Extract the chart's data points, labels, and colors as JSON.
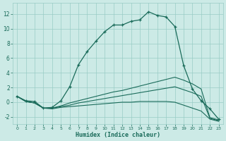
{
  "xlabel": "Humidex (Indice chaleur)",
  "background_color": "#cceae6",
  "grid_color": "#99ccc6",
  "line_color": "#1a6b5a",
  "xlim": [
    -0.5,
    23.5
  ],
  "ylim": [
    -3.0,
    13.5
  ],
  "xticks": [
    0,
    1,
    2,
    3,
    4,
    5,
    6,
    7,
    8,
    9,
    10,
    11,
    12,
    13,
    14,
    15,
    16,
    17,
    18,
    19,
    20,
    21,
    22,
    23
  ],
  "yticks": [
    -2,
    0,
    2,
    4,
    6,
    8,
    10,
    12
  ],
  "series1": {
    "x": [
      0,
      1,
      2,
      3,
      4,
      5,
      6,
      7,
      8,
      9,
      10,
      11,
      12,
      13,
      14,
      15,
      16,
      17,
      18,
      19,
      20,
      21,
      22,
      23
    ],
    "y": [
      0.8,
      0.2,
      0.1,
      -0.8,
      -0.7,
      0.2,
      2.1,
      5.1,
      6.9,
      8.3,
      9.6,
      10.5,
      10.5,
      11.0,
      11.2,
      12.3,
      11.8,
      11.6,
      10.3,
      5.0,
      1.8,
      0.2,
      -0.9,
      -2.3
    ],
    "marker": "+"
  },
  "series2": {
    "x": [
      0,
      1,
      2,
      3,
      4,
      5,
      6,
      7,
      8,
      9,
      10,
      11,
      12,
      13,
      14,
      15,
      16,
      17,
      18,
      19,
      20,
      21,
      22,
      23
    ],
    "y": [
      0.8,
      0.1,
      -0.1,
      -0.8,
      -0.8,
      -0.5,
      -0.1,
      0.2,
      0.5,
      0.8,
      1.1,
      1.4,
      1.6,
      1.9,
      2.2,
      2.5,
      2.8,
      3.1,
      3.4,
      3.0,
      2.5,
      1.8,
      -2.1,
      -2.4
    ],
    "marker": null
  },
  "series3": {
    "x": [
      0,
      1,
      2,
      3,
      4,
      5,
      6,
      7,
      8,
      9,
      10,
      11,
      12,
      13,
      14,
      15,
      16,
      17,
      18,
      19,
      20,
      21,
      22,
      23
    ],
    "y": [
      0.8,
      0.1,
      -0.1,
      -0.8,
      -0.8,
      -0.6,
      -0.4,
      -0.1,
      0.1,
      0.3,
      0.5,
      0.7,
      0.9,
      1.1,
      1.3,
      1.5,
      1.7,
      1.9,
      2.1,
      1.7,
      1.3,
      0.8,
      -2.2,
      -2.5
    ],
    "marker": null
  },
  "series4": {
    "x": [
      0,
      1,
      2,
      3,
      4,
      5,
      6,
      7,
      8,
      9,
      10,
      11,
      12,
      13,
      14,
      15,
      16,
      17,
      18,
      19,
      20,
      21,
      22,
      23
    ],
    "y": [
      0.8,
      0.1,
      -0.1,
      -0.8,
      -0.9,
      -0.7,
      -0.6,
      -0.5,
      -0.4,
      -0.3,
      -0.2,
      -0.1,
      0.0,
      0.0,
      0.1,
      0.1,
      0.1,
      0.1,
      0.0,
      -0.4,
      -0.8,
      -1.2,
      -2.3,
      -2.6
    ],
    "marker": null
  }
}
